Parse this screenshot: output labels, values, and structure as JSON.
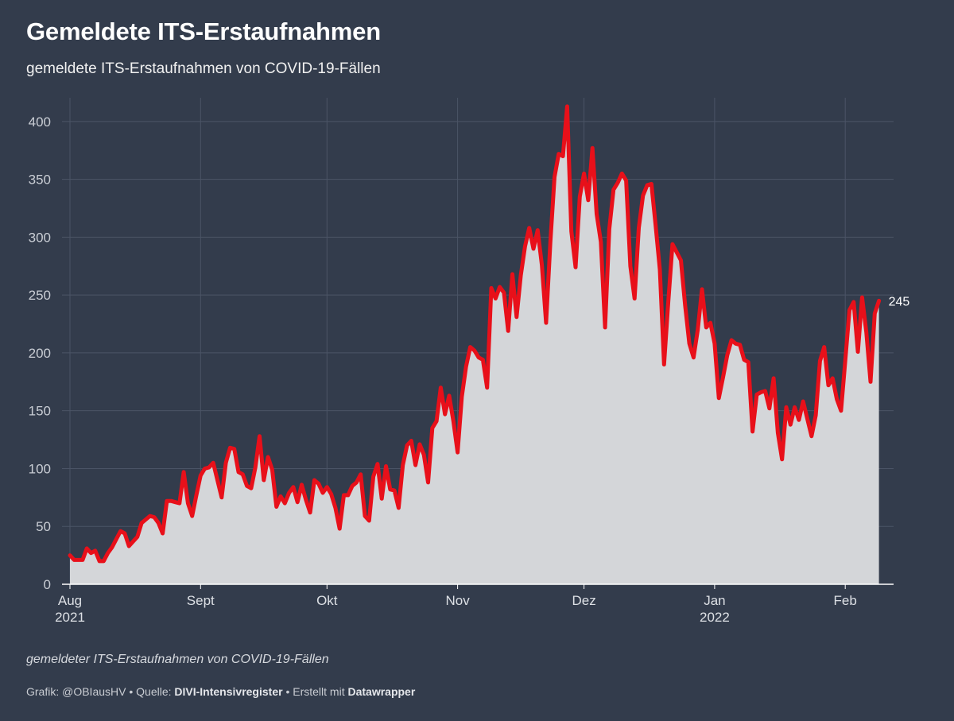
{
  "title": "Gemeldete ITS-Erstaufnahmen",
  "subtitle": "gemeldete ITS-Erstaufnahmen von COVID-19-Fällen",
  "note": "gemeldeter ITS-Erstaufnahmen von COVID-19-Fällen",
  "footer": {
    "prefix": "Grafik: @OBIausHV • Quelle: ",
    "source": "DIVI-Intensivregister",
    "middle": " • Erstellt mit ",
    "tool": "Datawrapper"
  },
  "colors": {
    "background": "#333c4c",
    "line": "#e8101a",
    "area": "#d4d6d9",
    "grid": "#4b5466"
  },
  "chart_data": {
    "type": "area",
    "title": "Gemeldete ITS-Erstaufnahmen",
    "subtitle": "gemeldete ITS-Erstaufnahmen von COVID-19-Fällen",
    "x_start": "2021-08-01",
    "x_end": "2022-02-06",
    "ylim": [
      0,
      415
    ],
    "yticks": [
      0,
      50,
      100,
      150,
      200,
      250,
      300,
      350,
      400
    ],
    "xticks": [
      {
        "date": "2021-08-01",
        "label": "Aug",
        "sub": "2021"
      },
      {
        "date": "2021-09-01",
        "label": "Sept",
        "sub": ""
      },
      {
        "date": "2021-10-01",
        "label": "Okt",
        "sub": ""
      },
      {
        "date": "2021-11-01",
        "label": "Nov",
        "sub": ""
      },
      {
        "date": "2021-12-01",
        "label": "Dez",
        "sub": ""
      },
      {
        "date": "2022-01-01",
        "label": "Jan",
        "sub": "2022"
      },
      {
        "date": "2022-02-01",
        "label": "Feb",
        "sub": ""
      }
    ],
    "grid": true,
    "end_label": "245",
    "series": [
      {
        "values": [
          [
            "2021-08-01",
            25
          ],
          [
            "2021-08-02",
            21
          ],
          [
            "2021-08-03",
            21
          ],
          [
            "2021-08-04",
            21
          ],
          [
            "2021-08-05",
            31
          ],
          [
            "2021-08-06",
            27
          ],
          [
            "2021-08-07",
            29
          ],
          [
            "2021-08-08",
            20
          ],
          [
            "2021-08-09",
            20
          ],
          [
            "2021-08-10",
            27
          ],
          [
            "2021-08-11",
            32
          ],
          [
            "2021-08-12",
            39
          ],
          [
            "2021-08-13",
            46
          ],
          [
            "2021-08-14",
            44
          ],
          [
            "2021-08-15",
            33
          ],
          [
            "2021-08-16",
            37
          ],
          [
            "2021-08-17",
            41
          ],
          [
            "2021-08-18",
            53
          ],
          [
            "2021-08-19",
            56
          ],
          [
            "2021-08-20",
            59
          ],
          [
            "2021-08-21",
            58
          ],
          [
            "2021-08-22",
            53
          ],
          [
            "2021-08-23",
            44
          ],
          [
            "2021-08-24",
            72
          ],
          [
            "2021-08-25",
            72
          ],
          [
            "2021-08-26",
            71
          ],
          [
            "2021-08-27",
            70
          ],
          [
            "2021-08-28",
            97
          ],
          [
            "2021-08-29",
            70
          ],
          [
            "2021-08-30",
            59
          ],
          [
            "2021-08-31",
            77
          ],
          [
            "2021-09-01",
            94
          ],
          [
            "2021-09-02",
            100
          ],
          [
            "2021-09-03",
            101
          ],
          [
            "2021-09-04",
            105
          ],
          [
            "2021-09-05",
            90
          ],
          [
            "2021-09-06",
            75
          ],
          [
            "2021-09-07",
            105
          ],
          [
            "2021-09-08",
            118
          ],
          [
            "2021-09-09",
            117
          ],
          [
            "2021-09-10",
            97
          ],
          [
            "2021-09-11",
            95
          ],
          [
            "2021-09-12",
            85
          ],
          [
            "2021-09-13",
            83
          ],
          [
            "2021-09-14",
            101
          ],
          [
            "2021-09-15",
            128
          ],
          [
            "2021-09-16",
            90
          ],
          [
            "2021-09-17",
            110
          ],
          [
            "2021-09-18",
            99
          ],
          [
            "2021-09-19",
            67
          ],
          [
            "2021-09-20",
            76
          ],
          [
            "2021-09-21",
            70
          ],
          [
            "2021-09-22",
            79
          ],
          [
            "2021-09-23",
            84
          ],
          [
            "2021-09-24",
            71
          ],
          [
            "2021-09-25",
            86
          ],
          [
            "2021-09-26",
            73
          ],
          [
            "2021-09-27",
            62
          ],
          [
            "2021-09-28",
            90
          ],
          [
            "2021-09-29",
            87
          ],
          [
            "2021-09-30",
            79
          ],
          [
            "2021-10-01",
            84
          ],
          [
            "2021-10-02",
            78
          ],
          [
            "2021-10-03",
            66
          ],
          [
            "2021-10-04",
            48
          ],
          [
            "2021-10-05",
            77
          ],
          [
            "2021-10-06",
            77
          ],
          [
            "2021-10-07",
            85
          ],
          [
            "2021-10-08",
            88
          ],
          [
            "2021-10-09",
            95
          ],
          [
            "2021-10-10",
            59
          ],
          [
            "2021-10-11",
            55
          ],
          [
            "2021-10-12",
            93
          ],
          [
            "2021-10-13",
            104
          ],
          [
            "2021-10-14",
            74
          ],
          [
            "2021-10-15",
            102
          ],
          [
            "2021-10-16",
            82
          ],
          [
            "2021-10-17",
            81
          ],
          [
            "2021-10-18",
            66
          ],
          [
            "2021-10-19",
            103
          ],
          [
            "2021-10-20",
            120
          ],
          [
            "2021-10-21",
            124
          ],
          [
            "2021-10-22",
            103
          ],
          [
            "2021-10-23",
            121
          ],
          [
            "2021-10-24",
            112
          ],
          [
            "2021-10-25",
            88
          ],
          [
            "2021-10-26",
            135
          ],
          [
            "2021-10-27",
            141
          ],
          [
            "2021-10-28",
            170
          ],
          [
            "2021-10-29",
            147
          ],
          [
            "2021-10-30",
            163
          ],
          [
            "2021-10-31",
            141
          ],
          [
            "2021-11-01",
            114
          ],
          [
            "2021-11-02",
            162
          ],
          [
            "2021-11-03",
            188
          ],
          [
            "2021-11-04",
            205
          ],
          [
            "2021-11-05",
            202
          ],
          [
            "2021-11-06",
            196
          ],
          [
            "2021-11-07",
            194
          ],
          [
            "2021-11-08",
            170
          ],
          [
            "2021-11-09",
            256
          ],
          [
            "2021-11-10",
            247
          ],
          [
            "2021-11-11",
            257
          ],
          [
            "2021-11-12",
            252
          ],
          [
            "2021-11-13",
            219
          ],
          [
            "2021-11-14",
            268
          ],
          [
            "2021-11-15",
            231
          ],
          [
            "2021-11-16",
            267
          ],
          [
            "2021-11-17",
            292
          ],
          [
            "2021-11-18",
            308
          ],
          [
            "2021-11-19",
            290
          ],
          [
            "2021-11-20",
            306
          ],
          [
            "2021-11-21",
            276
          ],
          [
            "2021-11-22",
            226
          ],
          [
            "2021-11-23",
            295
          ],
          [
            "2021-11-24",
            352
          ],
          [
            "2021-11-25",
            372
          ],
          [
            "2021-11-26",
            370
          ],
          [
            "2021-11-27",
            413
          ],
          [
            "2021-11-28",
            305
          ],
          [
            "2021-11-29",
            274
          ],
          [
            "2021-11-30",
            335
          ],
          [
            "2021-12-01",
            355
          ],
          [
            "2021-12-02",
            332
          ],
          [
            "2021-12-03",
            377
          ],
          [
            "2021-12-04",
            320
          ],
          [
            "2021-12-05",
            296
          ],
          [
            "2021-12-06",
            222
          ],
          [
            "2021-12-07",
            307
          ],
          [
            "2021-12-08",
            341
          ],
          [
            "2021-12-09",
            347
          ],
          [
            "2021-12-10",
            355
          ],
          [
            "2021-12-11",
            349
          ],
          [
            "2021-12-12",
            275
          ],
          [
            "2021-12-13",
            247
          ],
          [
            "2021-12-14",
            308
          ],
          [
            "2021-12-15",
            336
          ],
          [
            "2021-12-16",
            345
          ],
          [
            "2021-12-17",
            346
          ],
          [
            "2021-12-18",
            310
          ],
          [
            "2021-12-19",
            272
          ],
          [
            "2021-12-20",
            190
          ],
          [
            "2021-12-21",
            244
          ],
          [
            "2021-12-22",
            294
          ],
          [
            "2021-12-23",
            287
          ],
          [
            "2021-12-24",
            280
          ],
          [
            "2021-12-25",
            241
          ],
          [
            "2021-12-26",
            208
          ],
          [
            "2021-12-27",
            196
          ],
          [
            "2021-12-28",
            220
          ],
          [
            "2021-12-29",
            255
          ],
          [
            "2021-12-30",
            222
          ],
          [
            "2021-12-31",
            226
          ],
          [
            "2022-01-01",
            208
          ],
          [
            "2022-01-02",
            161
          ],
          [
            "2022-01-03",
            179
          ],
          [
            "2022-01-04",
            198
          ],
          [
            "2022-01-05",
            211
          ],
          [
            "2022-01-06",
            208
          ],
          [
            "2022-01-07",
            207
          ],
          [
            "2022-01-08",
            194
          ],
          [
            "2022-01-09",
            192
          ],
          [
            "2022-01-10",
            132
          ],
          [
            "2022-01-11",
            164
          ],
          [
            "2022-01-12",
            166
          ],
          [
            "2022-01-13",
            167
          ],
          [
            "2022-01-14",
            152
          ],
          [
            "2022-01-15",
            178
          ],
          [
            "2022-01-16",
            131
          ],
          [
            "2022-01-17",
            108
          ],
          [
            "2022-01-18",
            153
          ],
          [
            "2022-01-19",
            138
          ],
          [
            "2022-01-20",
            153
          ],
          [
            "2022-01-21",
            142
          ],
          [
            "2022-01-22",
            158
          ],
          [
            "2022-01-23",
            143
          ],
          [
            "2022-01-24",
            128
          ],
          [
            "2022-01-25",
            146
          ],
          [
            "2022-01-26",
            193
          ],
          [
            "2022-01-27",
            205
          ],
          [
            "2022-01-28",
            172
          ],
          [
            "2022-01-29",
            178
          ],
          [
            "2022-01-30",
            160
          ],
          [
            "2022-01-31",
            150
          ],
          [
            "2022-02-01",
            193
          ],
          [
            "2022-02-02",
            237
          ],
          [
            "2022-02-03",
            244
          ],
          [
            "2022-02-04",
            201
          ],
          [
            "2022-02-05",
            248
          ],
          [
            "2022-02-06",
            218
          ],
          [
            "2022-02-07",
            175
          ],
          [
            "2022-02-08",
            234
          ],
          [
            "2022-02-09",
            245
          ]
        ]
      }
    ]
  }
}
